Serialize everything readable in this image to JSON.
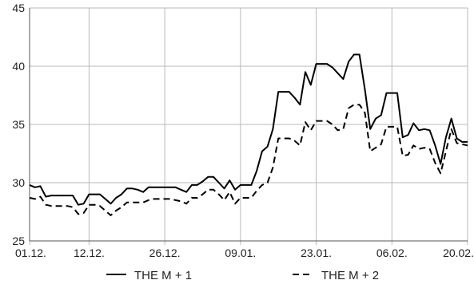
{
  "chart_data": {
    "type": "line",
    "title": "",
    "xlabel": "",
    "ylabel": "",
    "ylim": [
      25,
      45
    ],
    "yticks": [
      25,
      30,
      35,
      40,
      45
    ],
    "xlim": [
      0,
      81
    ],
    "xticks": [
      {
        "label": "01.12.",
        "x": 0
      },
      {
        "label": "12.12.",
        "x": 11
      },
      {
        "label": "26.12.",
        "x": 25
      },
      {
        "label": "09.01.",
        "x": 39
      },
      {
        "label": "23.01.",
        "x": 53
      },
      {
        "label": "06.02.",
        "x": 67
      },
      {
        "label": "20.02.",
        "x": 81
      }
    ],
    "grid": true,
    "legend_position": "bottom",
    "series": [
      {
        "name": "THE M + 1",
        "style": "solid",
        "color": "#000000",
        "points": [
          [
            0,
            29.8
          ],
          [
            1,
            29.6
          ],
          [
            2,
            29.7
          ],
          [
            3,
            28.8
          ],
          [
            4,
            28.9
          ],
          [
            5,
            28.9
          ],
          [
            6,
            28.9
          ],
          [
            7,
            28.9
          ],
          [
            8,
            28.9
          ],
          [
            9,
            28.1
          ],
          [
            10,
            28.2
          ],
          [
            11,
            29.0
          ],
          [
            12,
            29.0
          ],
          [
            13,
            29.0
          ],
          [
            14,
            28.6
          ],
          [
            15,
            28.2
          ],
          [
            16,
            28.7
          ],
          [
            17,
            29.0
          ],
          [
            18,
            29.5
          ],
          [
            19,
            29.5
          ],
          [
            20,
            29.4
          ],
          [
            21,
            29.2
          ],
          [
            22,
            29.6
          ],
          [
            23,
            29.6
          ],
          [
            24,
            29.6
          ],
          [
            25,
            29.6
          ],
          [
            26,
            29.6
          ],
          [
            27,
            29.6
          ],
          [
            28,
            29.4
          ],
          [
            29,
            29.2
          ],
          [
            30,
            29.8
          ],
          [
            31,
            29.8
          ],
          [
            32,
            30.1
          ],
          [
            33,
            30.5
          ],
          [
            34,
            30.5
          ],
          [
            35,
            30.0
          ],
          [
            36,
            29.5
          ],
          [
            37,
            30.2
          ],
          [
            38,
            29.4
          ],
          [
            39,
            29.8
          ],
          [
            40,
            29.8
          ],
          [
            41,
            29.8
          ],
          [
            42,
            31.0
          ],
          [
            43,
            32.7
          ],
          [
            44,
            33.1
          ],
          [
            45,
            34.6
          ],
          [
            46,
            37.8
          ],
          [
            47,
            37.8
          ],
          [
            48,
            37.8
          ],
          [
            49,
            37.3
          ],
          [
            50,
            36.7
          ],
          [
            51,
            39.5
          ],
          [
            52,
            38.4
          ],
          [
            53,
            40.2
          ],
          [
            54,
            40.2
          ],
          [
            55,
            40.2
          ],
          [
            56,
            39.9
          ],
          [
            57,
            39.4
          ],
          [
            58,
            38.9
          ],
          [
            59,
            40.4
          ],
          [
            60,
            41.0
          ],
          [
            61,
            41.0
          ],
          [
            62,
            38.0
          ],
          [
            63,
            34.6
          ],
          [
            64,
            35.5
          ],
          [
            65,
            35.8
          ],
          [
            66,
            37.7
          ],
          [
            67,
            37.7
          ],
          [
            68,
            37.7
          ],
          [
            69,
            33.9
          ],
          [
            70,
            34.1
          ],
          [
            71,
            35.1
          ],
          [
            72,
            34.5
          ],
          [
            73,
            34.6
          ],
          [
            74,
            34.5
          ],
          [
            75,
            33.2
          ],
          [
            76,
            31.6
          ],
          [
            77,
            33.9
          ],
          [
            78,
            35.5
          ],
          [
            79,
            33.8
          ],
          [
            80,
            33.5
          ],
          [
            81,
            33.5
          ]
        ]
      },
      {
        "name": "THE M + 2",
        "style": "dashed",
        "color": "#000000",
        "points": [
          [
            0,
            28.7
          ],
          [
            1,
            28.6
          ],
          [
            2,
            28.8
          ],
          [
            3,
            28.1
          ],
          [
            4,
            28.0
          ],
          [
            5,
            28.0
          ],
          [
            6,
            28.0
          ],
          [
            7,
            28.0
          ],
          [
            8,
            27.9
          ],
          [
            9,
            27.3
          ],
          [
            10,
            27.4
          ],
          [
            11,
            28.1
          ],
          [
            12,
            28.1
          ],
          [
            13,
            28.0
          ],
          [
            14,
            27.6
          ],
          [
            15,
            27.2
          ],
          [
            16,
            27.6
          ],
          [
            17,
            27.9
          ],
          [
            18,
            28.3
          ],
          [
            19,
            28.3
          ],
          [
            20,
            28.3
          ],
          [
            21,
            28.3
          ],
          [
            22,
            28.5
          ],
          [
            23,
            28.6
          ],
          [
            24,
            28.6
          ],
          [
            25,
            28.6
          ],
          [
            26,
            28.6
          ],
          [
            27,
            28.5
          ],
          [
            28,
            28.4
          ],
          [
            29,
            28.2
          ],
          [
            30,
            28.7
          ],
          [
            31,
            28.7
          ],
          [
            32,
            29.0
          ],
          [
            33,
            29.4
          ],
          [
            34,
            29.4
          ],
          [
            35,
            29.0
          ],
          [
            36,
            28.5
          ],
          [
            37,
            29.2
          ],
          [
            38,
            28.2
          ],
          [
            39,
            28.7
          ],
          [
            40,
            28.7
          ],
          [
            41,
            28.7
          ],
          [
            42,
            29.3
          ],
          [
            43,
            29.8
          ],
          [
            44,
            30.0
          ],
          [
            45,
            31.3
          ],
          [
            46,
            33.8
          ],
          [
            47,
            33.8
          ],
          [
            48,
            33.8
          ],
          [
            49,
            33.6
          ],
          [
            50,
            33.2
          ],
          [
            51,
            35.2
          ],
          [
            52,
            34.5
          ],
          [
            53,
            35.3
          ],
          [
            54,
            35.3
          ],
          [
            55,
            35.3
          ],
          [
            56,
            35.0
          ],
          [
            57,
            34.5
          ],
          [
            58,
            34.6
          ],
          [
            59,
            36.4
          ],
          [
            60,
            36.7
          ],
          [
            61,
            36.7
          ],
          [
            62,
            36.0
          ],
          [
            63,
            32.7
          ],
          [
            64,
            33.0
          ],
          [
            65,
            33.3
          ],
          [
            66,
            34.8
          ],
          [
            67,
            34.8
          ],
          [
            68,
            34.8
          ],
          [
            69,
            32.3
          ],
          [
            70,
            32.4
          ],
          [
            71,
            33.2
          ],
          [
            72,
            32.9
          ],
          [
            73,
            33.0
          ],
          [
            74,
            32.9
          ],
          [
            75,
            31.7
          ],
          [
            76,
            30.8
          ],
          [
            77,
            32.7
          ],
          [
            78,
            34.6
          ],
          [
            79,
            33.4
          ],
          [
            80,
            33.3
          ],
          [
            81,
            33.2
          ]
        ]
      }
    ]
  }
}
